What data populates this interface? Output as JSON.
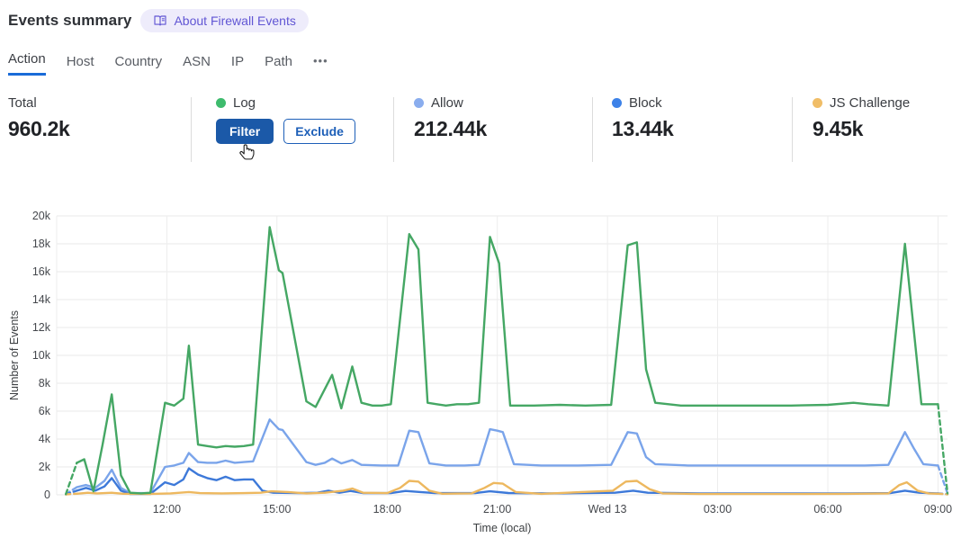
{
  "header": {
    "title": "Events summary",
    "badge": "About Firewall Events"
  },
  "tabs": {
    "items": [
      "Action",
      "Host",
      "Country",
      "ASN",
      "IP",
      "Path"
    ],
    "active": "Action",
    "more": "•••"
  },
  "stats": {
    "total": {
      "label": "Total",
      "value": "960.2k"
    },
    "log": {
      "label": "Log",
      "dot_color": "#3ebb6d",
      "filter_label": "Filter",
      "exclude_label": "Exclude"
    },
    "allow": {
      "label": "Allow",
      "value": "212.44k",
      "dot_color": "#8aadee"
    },
    "block": {
      "label": "Block",
      "value": "13.44k",
      "dot_color": "#3d82e8"
    },
    "js_challenge": {
      "label": "JS Challenge",
      "value": "9.45k",
      "dot_color": "#f0bd67"
    }
  },
  "chart_data": {
    "type": "line",
    "xlabel": "Time (local)",
    "ylabel": "Number of Events",
    "x_unit": "hours since 09:00 local",
    "y_unit": "k",
    "x_domain": [
      0,
      24.26
    ],
    "grid": true,
    "y_ticks": [
      {
        "value": 0,
        "label": "0"
      },
      {
        "value": 2,
        "label": "2k"
      },
      {
        "value": 4,
        "label": "4k"
      },
      {
        "value": 6,
        "label": "6k"
      },
      {
        "value": 8,
        "label": "8k"
      },
      {
        "value": 10,
        "label": "10k"
      },
      {
        "value": 12,
        "label": "12k"
      },
      {
        "value": 14,
        "label": "14k"
      },
      {
        "value": 16,
        "label": "16k"
      },
      {
        "value": 18,
        "label": "18k"
      },
      {
        "value": 20,
        "label": "20k"
      }
    ],
    "x_ticks": [
      {
        "t": 3,
        "label": "12:00"
      },
      {
        "t": 6,
        "label": "15:00"
      },
      {
        "t": 9,
        "label": "18:00"
      },
      {
        "t": 12,
        "label": "21:00"
      },
      {
        "t": 15,
        "label": "Wed 13"
      },
      {
        "t": 18,
        "label": "03:00"
      },
      {
        "t": 21,
        "label": "06:00"
      },
      {
        "t": 24,
        "label": "09:00"
      }
    ],
    "series": [
      {
        "name": "Allow",
        "color": "#7aa4ea",
        "pre": [
          [
            0.25,
            0.05
          ],
          [
            0.55,
            0.55
          ]
        ],
        "points": [
          [
            0.55,
            0.55
          ],
          [
            0.8,
            0.7
          ],
          [
            1.05,
            0.5
          ],
          [
            1.3,
            1.0
          ],
          [
            1.5,
            1.8
          ],
          [
            1.75,
            0.5
          ],
          [
            2.0,
            0.12
          ],
          [
            2.55,
            0.12
          ],
          [
            2.95,
            2.0
          ],
          [
            3.2,
            2.1
          ],
          [
            3.45,
            2.3
          ],
          [
            3.6,
            3.0
          ],
          [
            3.85,
            2.35
          ],
          [
            4.1,
            2.3
          ],
          [
            4.35,
            2.3
          ],
          [
            4.6,
            2.45
          ],
          [
            4.85,
            2.3
          ],
          [
            5.1,
            2.35
          ],
          [
            5.35,
            2.4
          ],
          [
            5.8,
            5.4
          ],
          [
            6.05,
            4.7
          ],
          [
            6.15,
            4.65
          ],
          [
            6.8,
            2.35
          ],
          [
            7.05,
            2.15
          ],
          [
            7.3,
            2.3
          ],
          [
            7.5,
            2.6
          ],
          [
            7.75,
            2.25
          ],
          [
            8.05,
            2.5
          ],
          [
            8.3,
            2.15
          ],
          [
            8.85,
            2.1
          ],
          [
            9.3,
            2.1
          ],
          [
            9.6,
            4.6
          ],
          [
            9.85,
            4.5
          ],
          [
            10.15,
            2.25
          ],
          [
            10.6,
            2.1
          ],
          [
            11.1,
            2.1
          ],
          [
            11.5,
            2.15
          ],
          [
            11.8,
            4.7
          ],
          [
            12.0,
            4.6
          ],
          [
            12.15,
            4.5
          ],
          [
            12.45,
            2.2
          ],
          [
            13.2,
            2.1
          ],
          [
            14.2,
            2.1
          ],
          [
            15.1,
            2.15
          ],
          [
            15.55,
            4.5
          ],
          [
            15.8,
            4.4
          ],
          [
            16.05,
            2.7
          ],
          [
            16.3,
            2.2
          ],
          [
            17.2,
            2.1
          ],
          [
            18.4,
            2.1
          ],
          [
            19.6,
            2.1
          ],
          [
            20.8,
            2.1
          ],
          [
            22.0,
            2.1
          ],
          [
            22.65,
            2.15
          ],
          [
            23.1,
            4.5
          ],
          [
            23.35,
            3.3
          ],
          [
            23.6,
            2.2
          ],
          [
            24.0,
            2.1
          ]
        ],
        "post": [
          [
            24.0,
            2.1
          ],
          [
            24.26,
            0.1
          ]
        ]
      },
      {
        "name": "Block",
        "color": "#3d79d9",
        "pre": [
          [
            0.25,
            0.03
          ],
          [
            0.55,
            0.3
          ]
        ],
        "points": [
          [
            0.55,
            0.3
          ],
          [
            0.8,
            0.5
          ],
          [
            1.05,
            0.3
          ],
          [
            1.3,
            0.6
          ],
          [
            1.5,
            1.2
          ],
          [
            1.75,
            0.3
          ],
          [
            2.0,
            0.06
          ],
          [
            2.55,
            0.06
          ],
          [
            2.95,
            0.9
          ],
          [
            3.2,
            0.7
          ],
          [
            3.45,
            1.1
          ],
          [
            3.6,
            1.9
          ],
          [
            3.85,
            1.45
          ],
          [
            4.1,
            1.2
          ],
          [
            4.35,
            1.05
          ],
          [
            4.6,
            1.3
          ],
          [
            4.85,
            1.05
          ],
          [
            5.1,
            1.1
          ],
          [
            5.35,
            1.1
          ],
          [
            5.6,
            0.3
          ],
          [
            5.9,
            0.15
          ],
          [
            6.6,
            0.12
          ],
          [
            7.1,
            0.15
          ],
          [
            7.4,
            0.3
          ],
          [
            7.7,
            0.15
          ],
          [
            8.0,
            0.28
          ],
          [
            8.35,
            0.12
          ],
          [
            9.1,
            0.12
          ],
          [
            9.5,
            0.28
          ],
          [
            9.9,
            0.2
          ],
          [
            10.3,
            0.12
          ],
          [
            11.4,
            0.12
          ],
          [
            11.8,
            0.25
          ],
          [
            12.3,
            0.13
          ],
          [
            13.5,
            0.1
          ],
          [
            15.2,
            0.15
          ],
          [
            15.7,
            0.3
          ],
          [
            16.1,
            0.15
          ],
          [
            17.5,
            0.1
          ],
          [
            19.5,
            0.1
          ],
          [
            21.5,
            0.1
          ],
          [
            22.7,
            0.12
          ],
          [
            23.1,
            0.3
          ],
          [
            23.5,
            0.15
          ],
          [
            24.0,
            0.1
          ]
        ],
        "post": [
          [
            24.0,
            0.1
          ],
          [
            24.26,
            0.04
          ]
        ]
      },
      {
        "name": "JS Challenge",
        "color": "#edb85f",
        "pre": [
          [
            0.25,
            0.03
          ],
          [
            0.55,
            0.08
          ]
        ],
        "points": [
          [
            0.55,
            0.08
          ],
          [
            0.85,
            0.15
          ],
          [
            1.1,
            0.1
          ],
          [
            1.5,
            0.15
          ],
          [
            1.8,
            0.08
          ],
          [
            2.5,
            0.06
          ],
          [
            3.1,
            0.1
          ],
          [
            3.6,
            0.2
          ],
          [
            3.9,
            0.12
          ],
          [
            4.5,
            0.1
          ],
          [
            5.1,
            0.12
          ],
          [
            5.55,
            0.15
          ],
          [
            5.85,
            0.25
          ],
          [
            6.3,
            0.2
          ],
          [
            6.8,
            0.1
          ],
          [
            7.3,
            0.15
          ],
          [
            7.8,
            0.3
          ],
          [
            8.05,
            0.45
          ],
          [
            8.35,
            0.15
          ],
          [
            9.0,
            0.12
          ],
          [
            9.35,
            0.5
          ],
          [
            9.6,
            1.0
          ],
          [
            9.85,
            0.95
          ],
          [
            10.15,
            0.3
          ],
          [
            10.5,
            0.08
          ],
          [
            11.3,
            0.1
          ],
          [
            11.65,
            0.5
          ],
          [
            11.9,
            0.85
          ],
          [
            12.15,
            0.8
          ],
          [
            12.5,
            0.2
          ],
          [
            13.2,
            0.07
          ],
          [
            15.15,
            0.3
          ],
          [
            15.5,
            0.95
          ],
          [
            15.8,
            1.0
          ],
          [
            16.15,
            0.4
          ],
          [
            16.5,
            0.1
          ],
          [
            17.5,
            0.06
          ],
          [
            19.5,
            0.06
          ],
          [
            21.5,
            0.07
          ],
          [
            22.65,
            0.1
          ],
          [
            22.95,
            0.7
          ],
          [
            23.15,
            0.9
          ],
          [
            23.45,
            0.3
          ],
          [
            23.75,
            0.1
          ],
          [
            24.0,
            0.08
          ]
        ],
        "post": [
          [
            24.0,
            0.08
          ],
          [
            24.26,
            0.04
          ]
        ]
      },
      {
        "name": "Log",
        "color": "#45a764",
        "pre": [
          [
            0.25,
            0.05
          ],
          [
            0.55,
            2.3
          ]
        ],
        "points": [
          [
            0.55,
            2.3
          ],
          [
            0.75,
            2.55
          ],
          [
            1.0,
            0.25
          ],
          [
            1.25,
            3.6
          ],
          [
            1.5,
            7.2
          ],
          [
            1.75,
            1.4
          ],
          [
            2.0,
            0.15
          ],
          [
            2.3,
            0.1
          ],
          [
            2.55,
            0.15
          ],
          [
            2.95,
            6.6
          ],
          [
            3.2,
            6.4
          ],
          [
            3.45,
            6.9
          ],
          [
            3.6,
            10.7
          ],
          [
            3.85,
            3.6
          ],
          [
            4.1,
            3.5
          ],
          [
            4.35,
            3.4
          ],
          [
            4.6,
            3.5
          ],
          [
            4.85,
            3.45
          ],
          [
            5.1,
            3.5
          ],
          [
            5.35,
            3.6
          ],
          [
            5.8,
            19.2
          ],
          [
            6.05,
            16.1
          ],
          [
            6.15,
            15.9
          ],
          [
            6.8,
            6.7
          ],
          [
            7.05,
            6.3
          ],
          [
            7.5,
            8.6
          ],
          [
            7.75,
            6.2
          ],
          [
            8.05,
            9.2
          ],
          [
            8.3,
            6.6
          ],
          [
            8.6,
            6.4
          ],
          [
            8.85,
            6.4
          ],
          [
            9.1,
            6.5
          ],
          [
            9.6,
            18.7
          ],
          [
            9.85,
            17.6
          ],
          [
            10.1,
            6.6
          ],
          [
            10.35,
            6.5
          ],
          [
            10.6,
            6.4
          ],
          [
            10.9,
            6.5
          ],
          [
            11.2,
            6.5
          ],
          [
            11.5,
            6.6
          ],
          [
            11.8,
            18.5
          ],
          [
            12.05,
            16.6
          ],
          [
            12.35,
            6.4
          ],
          [
            13.0,
            6.4
          ],
          [
            13.7,
            6.45
          ],
          [
            14.4,
            6.4
          ],
          [
            15.1,
            6.45
          ],
          [
            15.55,
            17.9
          ],
          [
            15.8,
            18.1
          ],
          [
            16.05,
            9.0
          ],
          [
            16.3,
            6.6
          ],
          [
            17.0,
            6.4
          ],
          [
            18.0,
            6.4
          ],
          [
            19.0,
            6.4
          ],
          [
            20.0,
            6.4
          ],
          [
            21.0,
            6.45
          ],
          [
            21.7,
            6.6
          ],
          [
            22.1,
            6.5
          ],
          [
            22.65,
            6.4
          ],
          [
            23.1,
            18.0
          ],
          [
            23.55,
            6.5
          ],
          [
            24.0,
            6.5
          ]
        ],
        "post": [
          [
            24.0,
            6.5
          ],
          [
            24.26,
            0.1
          ]
        ]
      }
    ]
  }
}
